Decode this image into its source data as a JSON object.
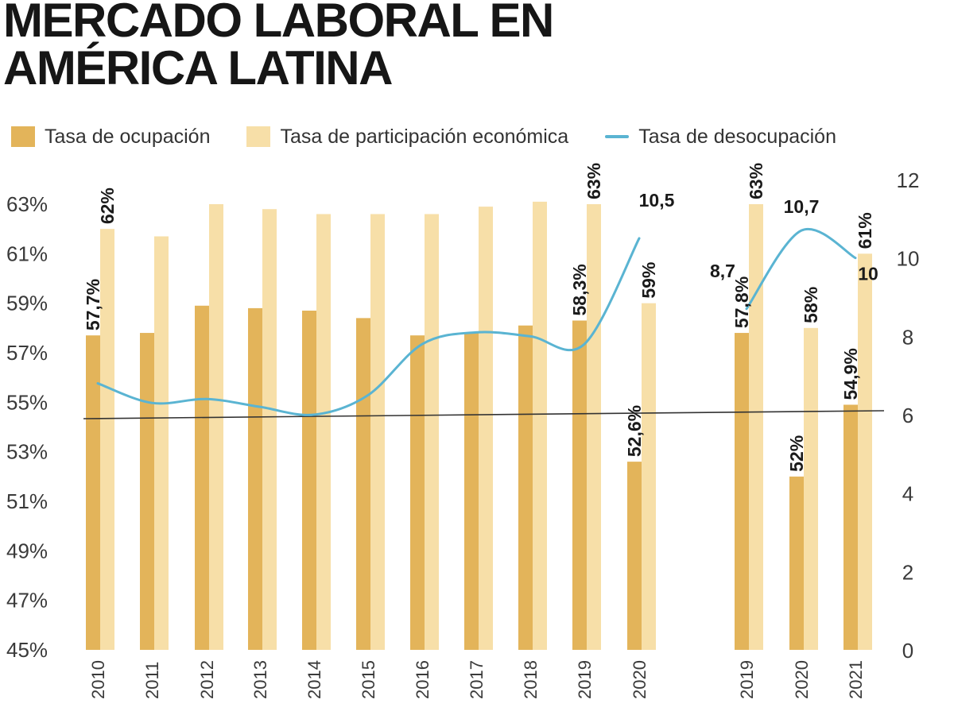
{
  "chart_data": {
    "type": "bar",
    "title": [
      "MERCADO LABORAL EN",
      "AMÉRICA LATINA"
    ],
    "categories": [
      "2010",
      "2011",
      "2012",
      "2013",
      "2014",
      "2015",
      "2016",
      "2017",
      "2018",
      "2019",
      "2020",
      "2019",
      "2020",
      "2021"
    ],
    "series": [
      {
        "name": "Tasa de ocupación",
        "kind": "bar",
        "axis": "left",
        "color": "#e3b45a",
        "values": [
          57.7,
          57.8,
          58.9,
          58.8,
          58.7,
          58.4,
          57.7,
          57.8,
          58.1,
          58.3,
          52.6,
          57.8,
          52.0,
          54.9
        ]
      },
      {
        "name": "Tasa de participación económica",
        "kind": "bar",
        "axis": "left",
        "color": "#f7dfa8",
        "values": [
          62.0,
          61.7,
          63.0,
          62.8,
          62.6,
          62.6,
          62.6,
          62.9,
          63.1,
          63.0,
          59.0,
          63.0,
          58.0,
          61.0
        ]
      },
      {
        "name": "Tasa de desocupación",
        "kind": "line",
        "axis": "right",
        "color": "#5ab4d2",
        "segments": [
          {
            "indices": [
              0,
              1,
              2,
              3,
              4,
              5,
              6,
              7,
              8,
              9,
              10
            ],
            "values": [
              6.8,
              6.3,
              6.4,
              6.2,
              6.0,
              6.5,
              7.8,
              8.1,
              8.0,
              7.8,
              10.5
            ]
          },
          {
            "indices": [
              11,
              12,
              13
            ],
            "values": [
              8.7,
              10.7,
              10.0
            ]
          }
        ]
      }
    ],
    "data_labels": [
      {
        "text": "57,7%",
        "index": 0,
        "series": "ocupacion",
        "value": 57.7
      },
      {
        "text": "62%",
        "index": 0,
        "series": "participacion",
        "value": 62.0
      },
      {
        "text": "58,3%",
        "index": 9,
        "series": "ocupacion",
        "value": 58.3
      },
      {
        "text": "63%",
        "index": 9,
        "series": "participacion",
        "value": 63.0
      },
      {
        "text": "52,6%",
        "index": 10,
        "series": "ocupacion",
        "value": 52.6
      },
      {
        "text": "59%",
        "index": 10,
        "series": "participacion",
        "value": 59.0
      },
      {
        "text": "57,8%",
        "index": 11,
        "series": "ocupacion",
        "value": 57.8
      },
      {
        "text": "63%",
        "index": 11,
        "series": "participacion",
        "value": 63.0
      },
      {
        "text": "52%",
        "index": 12,
        "series": "ocupacion",
        "value": 52.0
      },
      {
        "text": "58%",
        "index": 12,
        "series": "participacion",
        "value": 58.0
      },
      {
        "text": "54,9%",
        "index": 13,
        "series": "ocupacion",
        "value": 54.9
      },
      {
        "text": "61%",
        "index": 13,
        "series": "participacion",
        "value": 61.0
      },
      {
        "text": "10,5",
        "index": 10,
        "series": "desocupacion",
        "value": 10.5
      },
      {
        "text": "8,7",
        "index": 11,
        "series": "desocupacion",
        "value": 8.7
      },
      {
        "text": "10,7",
        "index": 12,
        "series": "desocupacion",
        "value": 10.7
      },
      {
        "text": "10",
        "index": 13,
        "series": "desocupacion",
        "value": 10.0
      }
    ],
    "left_axis": {
      "min": 45,
      "max": 63,
      "ticks": [
        63,
        61,
        59,
        57,
        55,
        53,
        51,
        49,
        47,
        45
      ],
      "tick_labels": [
        "63%",
        "61%",
        "59%",
        "57%",
        "55%",
        "53%",
        "51%",
        "49%",
        "47%",
        "45%"
      ]
    },
    "right_axis": {
      "min": 0,
      "max": 12,
      "ticks": [
        12,
        10,
        8,
        6,
        4,
        2,
        0
      ],
      "tick_labels": [
        "12",
        "10",
        "8",
        "6",
        "4",
        "2",
        "0"
      ]
    },
    "reference_line": {
      "axis": "right",
      "value": 6
    },
    "legend_position": "top",
    "grid": false
  }
}
